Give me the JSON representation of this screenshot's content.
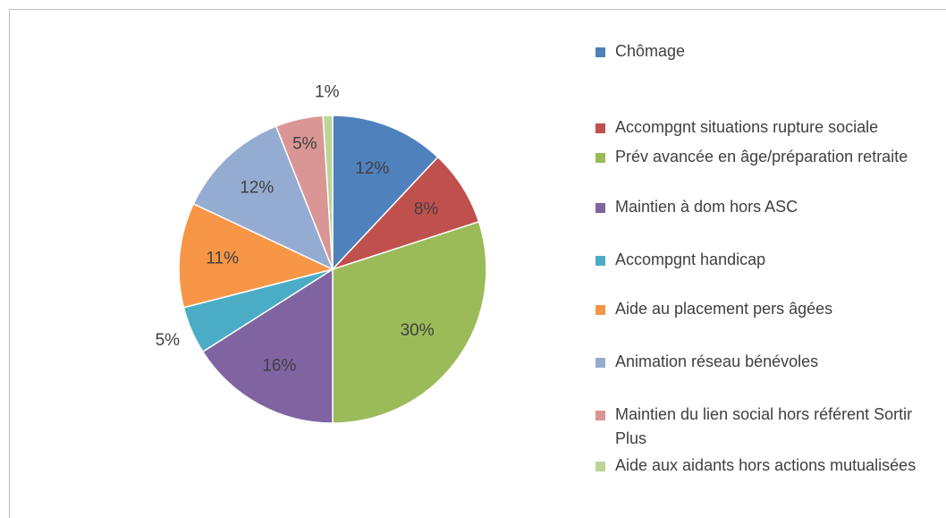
{
  "chart_data": {
    "type": "pie",
    "categories": [
      "Chômage",
      "Accompgnt situations rupture sociale",
      "Prév avancée en âge/préparation retraite",
      "Maintien à dom hors ASC",
      "Accompgnt handicap",
      "Aide au placement pers âgées",
      "Animation réseau bénévoles",
      "Maintien du lien social hors référent Sortir Plus",
      "Aide aux aidants hors actions mutualisées"
    ],
    "values": [
      12,
      8,
      30,
      16,
      5,
      11,
      12,
      5,
      1
    ],
    "value_labels": [
      "12%",
      "8%",
      "30%",
      "16%",
      "5%",
      "11%",
      "12%",
      "5%",
      "1%"
    ],
    "colors": [
      "#4F81BD",
      "#C0504D",
      "#9BBB59",
      "#8064A2",
      "#4BACC6",
      "#F79646",
      "#95ACD2",
      "#D99694",
      "#BCD597"
    ],
    "legend": "right"
  }
}
